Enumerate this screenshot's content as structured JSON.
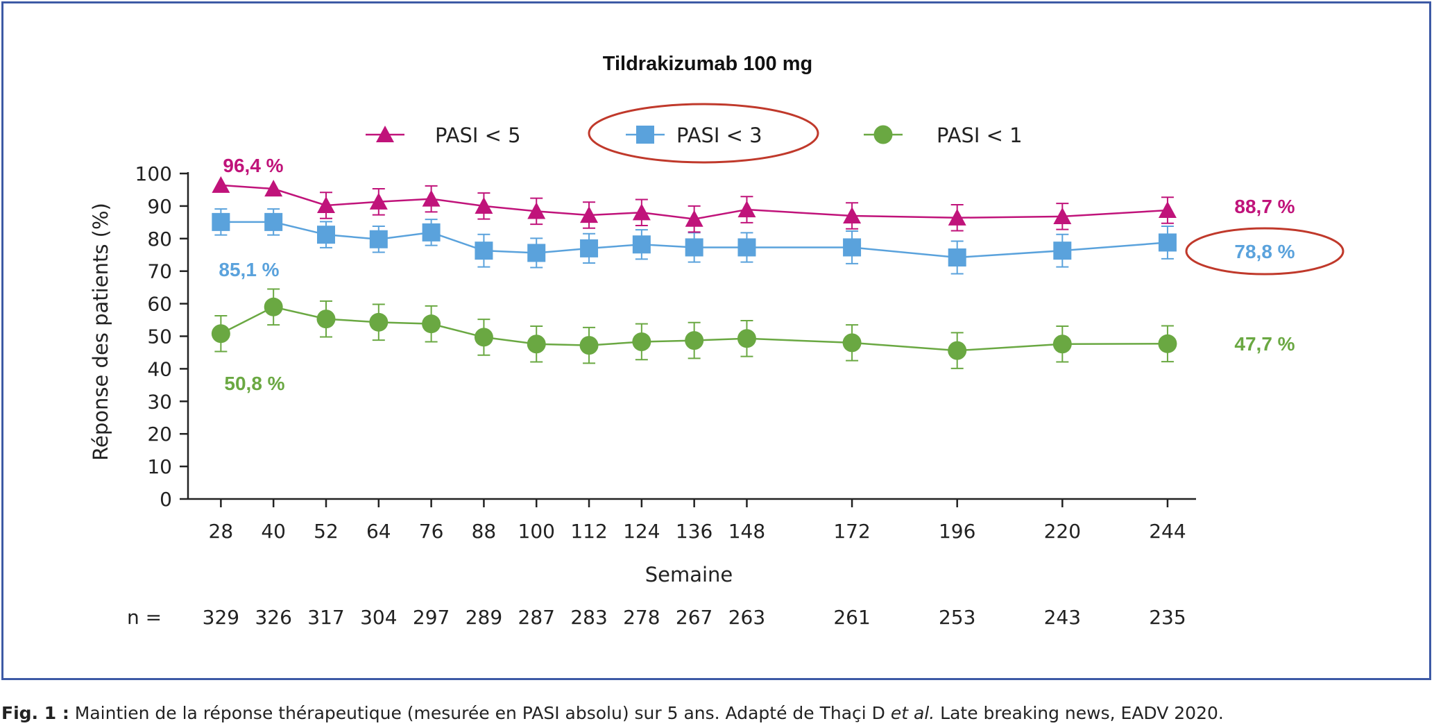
{
  "chart_data": {
    "type": "line",
    "title": "Tildrakizumab 100 mg",
    "xlabel": "Semaine",
    "ylabel": "Réponse des patients (%)",
    "ylim": [
      0,
      100
    ],
    "yticks": [
      0,
      10,
      20,
      30,
      40,
      50,
      60,
      70,
      80,
      90,
      100
    ],
    "x": [
      28,
      40,
      52,
      64,
      76,
      88,
      100,
      112,
      124,
      136,
      148,
      172,
      196,
      220,
      244
    ],
    "n_label": "n =",
    "n": [
      329,
      326,
      317,
      304,
      297,
      289,
      287,
      283,
      278,
      267,
      263,
      261,
      253,
      243,
      235
    ],
    "legend_position": "top",
    "series": [
      {
        "name": "PASI < 5",
        "color": "#c0137a",
        "marker": "triangle",
        "values": [
          96.4,
          95.3,
          90.2,
          91.3,
          92.2,
          90.0,
          88.4,
          87.2,
          88.0,
          86.0,
          88.9,
          87.0,
          86.4,
          86.8,
          88.7
        ],
        "error": [
          0,
          0,
          4,
          4,
          4,
          4,
          4,
          4,
          4,
          4,
          4,
          4,
          4,
          4,
          4
        ],
        "start_label": "96,4 %",
        "end_label": "88,7 %"
      },
      {
        "name": "PASI < 3",
        "color": "#5aa2dc",
        "marker": "square",
        "values": [
          85.1,
          85.1,
          81.2,
          79.8,
          81.9,
          76.3,
          75.6,
          77.0,
          78.2,
          77.3,
          77.3,
          77.3,
          74.2,
          76.3,
          78.8
        ],
        "error": [
          4,
          4,
          4,
          4,
          4,
          5,
          4.5,
          4.5,
          4.5,
          4.5,
          4.5,
          5,
          5,
          5,
          5
        ],
        "start_label": "85,1 %",
        "end_label": "78,8 %",
        "highlighted": true
      },
      {
        "name": "PASI < 1",
        "color": "#6aa842",
        "marker": "circle",
        "values": [
          50.8,
          59.0,
          55.3,
          54.3,
          53.8,
          49.7,
          47.6,
          47.2,
          48.3,
          48.7,
          49.3,
          48.0,
          45.6,
          47.6,
          47.7
        ],
        "error": [
          5.5,
          5.5,
          5.5,
          5.5,
          5.5,
          5.5,
          5.5,
          5.5,
          5.5,
          5.5,
          5.5,
          5.5,
          5.5,
          5.5,
          5.5
        ],
        "start_label": "50,8 %",
        "end_label": "47,7 %"
      }
    ]
  },
  "caption": {
    "prefix": "Fig. 1 :",
    "text": " Maintien de la réponse thérapeutique (mesurée en PASI absolu) sur 5 ans. Adapté de Thaçi D ",
    "italic": "et al.",
    "suffix": " Late breaking news, EADV 2020."
  }
}
